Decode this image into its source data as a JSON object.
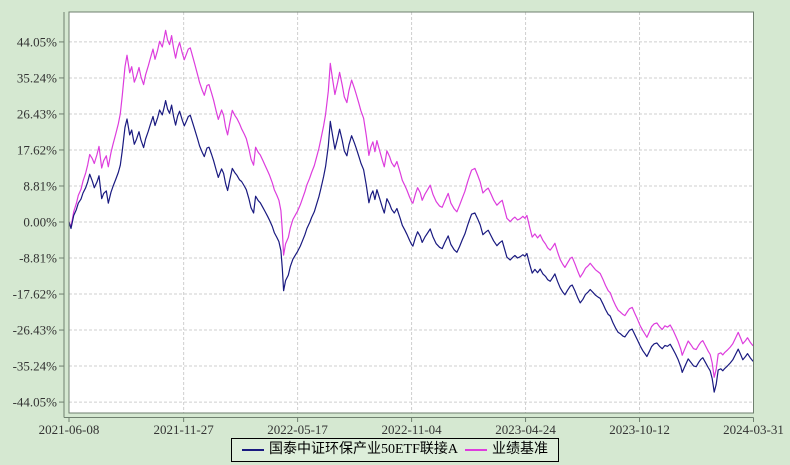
{
  "colors": {
    "page_background": "#d5e8d1",
    "plot_background": "#ffffff",
    "grid": "#cfcfcf",
    "axis": "#6f7f6f",
    "tick_text": "#333333",
    "fund_line": "#1a1a80",
    "benchmark_line": "#dd3ddd"
  },
  "legend": {
    "items": [
      {
        "label": "国泰中证环保产业50ETF联接A",
        "color": "#1a1a80"
      },
      {
        "label": "业绩基准",
        "color": "#dd3ddd"
      }
    ]
  },
  "chart_data": {
    "type": "line",
    "title": "",
    "grid": true,
    "legend_position": "bottom",
    "x_axis": {
      "tick_labels": [
        "2021-06-08",
        "2021-11-27",
        "2022-05-17",
        "2022-11-04",
        "2023-04-24",
        "2023-10-12",
        "2024-03-31"
      ],
      "tick_days": [
        0,
        172,
        343,
        514,
        685,
        856,
        1027
      ],
      "range_days": [
        0,
        1027
      ],
      "unit": "days since 2021-06-08"
    },
    "y_axis": {
      "tick_labels": [
        "44.05%",
        "35.24%",
        "26.43%",
        "17.62%",
        "8.81%",
        "0.00%",
        "-8.81%",
        "-17.62%",
        "-26.43%",
        "-35.24%",
        "-44.05%"
      ],
      "tick_values": [
        44.05,
        35.24,
        26.43,
        17.62,
        8.81,
        0,
        -8.81,
        -17.62,
        -26.43,
        -35.24,
        -44.05
      ],
      "range": [
        -46.8,
        51.3
      ],
      "unit": "%"
    },
    "days": [
      0,
      3,
      7,
      11,
      14,
      18,
      21,
      25,
      28,
      31,
      35,
      38,
      42,
      45,
      49,
      52,
      56,
      59,
      63,
      66,
      70,
      74,
      77,
      80,
      84,
      87,
      91,
      94,
      98,
      101,
      105,
      108,
      112,
      115,
      119,
      122,
      126,
      129,
      133,
      136,
      140,
      143,
      145,
      148,
      151,
      154,
      157,
      160,
      163,
      166,
      170,
      173,
      176,
      179,
      182,
      186,
      189,
      193,
      196,
      200,
      203,
      207,
      210,
      214,
      217,
      221,
      224,
      229,
      232,
      235,
      238,
      241,
      245,
      249,
      252,
      256,
      259,
      263,
      266,
      270,
      273,
      277,
      280,
      284,
      287,
      291,
      294,
      298,
      301,
      305,
      308,
      312,
      315,
      318,
      320,
      322,
      325,
      329,
      332,
      336,
      340,
      343,
      347,
      350,
      354,
      357,
      361,
      364,
      368,
      371,
      375,
      378,
      382,
      385,
      389,
      392,
      395,
      399,
      403,
      406,
      410,
      413,
      417,
      420,
      424,
      428,
      431,
      435,
      438,
      442,
      446,
      450,
      453,
      456,
      459,
      462,
      466,
      470,
      473,
      477,
      481,
      484,
      488,
      492,
      497,
      500,
      504,
      507,
      511,
      514,
      516,
      520,
      523,
      527,
      530,
      534,
      538,
      542,
      546,
      551,
      556,
      560,
      564,
      569,
      573,
      578,
      582,
      586,
      590,
      594,
      598,
      601,
      604,
      609,
      613,
      617,
      621,
      625,
      629,
      633,
      637,
      642,
      646,
      650,
      654,
      657,
      662,
      666,
      669,
      673,
      677,
      681,
      684,
      687,
      691,
      695,
      699,
      703,
      707,
      711,
      715,
      718,
      722,
      726,
      729,
      733,
      737,
      741,
      744,
      748,
      752,
      755,
      759,
      763,
      767,
      771,
      775,
      779,
      782,
      786,
      790,
      794,
      797,
      801,
      805,
      809,
      812,
      816,
      820,
      824,
      827,
      831,
      834,
      838,
      841,
      845,
      849,
      853,
      857,
      861,
      864,
      867,
      871,
      874,
      878,
      882,
      886,
      890,
      894,
      898,
      902,
      906,
      910,
      914,
      918,
      920,
      924,
      929,
      933,
      937,
      941,
      945,
      948,
      951,
      955,
      959,
      962,
      965,
      968,
      971,
      974,
      978,
      981,
      984,
      988,
      992,
      996,
      1000,
      1004,
      1008,
      1011,
      1015,
      1018,
      1022,
      1026
    ],
    "series": [
      {
        "name": "国泰中证环保产业50ETF联接A",
        "color": "#1a1a80",
        "values": [
          0,
          -1.6,
          1.6,
          3.0,
          4.6,
          5.6,
          7.1,
          8.4,
          9.8,
          11.7,
          10.0,
          8.4,
          9.8,
          11.3,
          5.7,
          7.0,
          7.6,
          4.6,
          7.3,
          8.7,
          10.4,
          12.1,
          13.9,
          17.5,
          23.2,
          25.2,
          21.3,
          22.5,
          19.0,
          20.1,
          22.1,
          20.0,
          18.2,
          20.3,
          22.2,
          23.8,
          25.8,
          23.6,
          25.5,
          27.4,
          26.2,
          28.2,
          29.7,
          27.6,
          26.6,
          28.6,
          25.8,
          23.7,
          25.9,
          27.1,
          24.9,
          23.5,
          24.6,
          25.8,
          26.1,
          24.0,
          22.4,
          20.3,
          18.6,
          17.0,
          16.0,
          18.1,
          18.3,
          16.5,
          15.0,
          12.6,
          10.9,
          13.0,
          11.9,
          9.4,
          7.7,
          10.1,
          13.1,
          12.0,
          11.4,
          10.3,
          9.9,
          8.8,
          7.9,
          5.6,
          3.5,
          2.2,
          6.3,
          5.2,
          4.7,
          3.5,
          2.6,
          1.4,
          0.4,
          -1.1,
          -2.6,
          -3.8,
          -4.8,
          -7.0,
          -11.3,
          -16.8,
          -14.3,
          -13.0,
          -10.9,
          -9.1,
          -8.0,
          -7.2,
          -5.9,
          -4.7,
          -3.1,
          -1.6,
          -0.2,
          1.1,
          2.5,
          4.1,
          6.2,
          8.2,
          11.1,
          13.6,
          18.6,
          24.6,
          21.6,
          17.8,
          20.5,
          22.7,
          19.9,
          17.4,
          16.2,
          18.8,
          21.1,
          19.4,
          18.0,
          16.0,
          14.4,
          12.8,
          9.0,
          4.7,
          6.6,
          7.6,
          5.5,
          7.9,
          5.8,
          3.6,
          2.2,
          5.7,
          4.4,
          3.1,
          2.2,
          3.3,
          0.8,
          -0.8,
          -2.0,
          -3.0,
          -4.5,
          -5.5,
          -5.9,
          -3.7,
          -2.4,
          -3.5,
          -5.0,
          -3.7,
          -2.7,
          -1.7,
          -3.6,
          -5.3,
          -6.2,
          -6.5,
          -5.0,
          -3.4,
          -5.5,
          -6.8,
          -7.4,
          -6.0,
          -4.4,
          -2.9,
          -0.8,
          0.6,
          1.9,
          2.2,
          0.8,
          -0.7,
          -3.1,
          -2.5,
          -2.0,
          -3.3,
          -4.6,
          -5.8,
          -5.1,
          -4.6,
          -6.9,
          -8.6,
          -9.3,
          -8.6,
          -8.2,
          -8.8,
          -8.5,
          -8.0,
          -8.4,
          -7.7,
          -10.3,
          -12.5,
          -11.6,
          -12.4,
          -11.5,
          -12.7,
          -13.3,
          -14.1,
          -14.5,
          -13.5,
          -12.7,
          -14.5,
          -16.1,
          -17.2,
          -17.8,
          -16.7,
          -15.7,
          -15.4,
          -16.8,
          -18.4,
          -19.8,
          -18.9,
          -17.7,
          -17.1,
          -16.5,
          -17.2,
          -17.9,
          -18.4,
          -18.7,
          -20.0,
          -21.4,
          -22.6,
          -23.0,
          -24.6,
          -25.9,
          -27.0,
          -27.3,
          -27.9,
          -28.1,
          -27.2,
          -26.5,
          -26.2,
          -27.6,
          -28.9,
          -30.3,
          -31.5,
          -32.2,
          -32.9,
          -31.6,
          -30.5,
          -29.8,
          -29.6,
          -30.4,
          -31.0,
          -30.2,
          -30.4,
          -29.9,
          -31.1,
          -32.3,
          -33.7,
          -35.5,
          -36.8,
          -35.3,
          -33.5,
          -34.3,
          -35.2,
          -35.4,
          -34.3,
          -33.6,
          -33.2,
          -34.4,
          -35.6,
          -36.4,
          -38.3,
          -41.6,
          -39.7,
          -36.2,
          -35.9,
          -36.4,
          -35.8,
          -35.2,
          -34.5,
          -33.7,
          -32.4,
          -31.1,
          -32.5,
          -33.7,
          -32.9,
          -32.2,
          -33.2,
          -34.0
        ]
      },
      {
        "name": "业绩基准",
        "color": "#dd3ddd",
        "values": [
          0,
          -1.2,
          2.5,
          4.5,
          6.5,
          8,
          10,
          12,
          14,
          16.5,
          15.5,
          14.3,
          16.5,
          18.5,
          13.2,
          15,
          16.2,
          13.5,
          17,
          19,
          21.5,
          24,
          26.5,
          31,
          38,
          40.8,
          36.5,
          38,
          34.2,
          35.5,
          37.8,
          35.5,
          33.6,
          36,
          38.2,
          40,
          42.3,
          39.8,
          42,
          44.2,
          42.8,
          45.2,
          46.9,
          44.5,
          43.4,
          45.6,
          42.5,
          40.1,
          42.5,
          43.9,
          41.3,
          39.7,
          41,
          42.3,
          42.6,
          40.2,
          38.4,
          36,
          34.1,
          32.2,
          31,
          33.4,
          33.6,
          31.5,
          29.8,
          27,
          25.1,
          27.4,
          26.1,
          23.2,
          21.3,
          24,
          27.3,
          26,
          25.3,
          24,
          22.8,
          21.5,
          20.4,
          17.8,
          15.4,
          13.9,
          18.3,
          17,
          16.4,
          15,
          13.9,
          12.5,
          11.4,
          9.6,
          7.9,
          6.5,
          5.3,
          2.8,
          -2,
          -8.1,
          -5.3,
          -3.8,
          -1.5,
          0.6,
          1.8,
          2.7,
          4.2,
          5.6,
          7.4,
          9.1,
          10.7,
          12.1,
          13.8,
          15.6,
          18,
          20.3,
          23.5,
          26.4,
          32,
          38.8,
          35.4,
          31.2,
          34.1,
          36.6,
          33.4,
          30.6,
          29.2,
          32.1,
          34.7,
          32.8,
          31.2,
          29,
          27.2,
          25.4,
          21.1,
          16.3,
          18.4,
          19.6,
          17.2,
          19.9,
          17.5,
          15.1,
          13.5,
          17.4,
          16,
          14.5,
          13.5,
          14.8,
          12,
          10.2,
          8.9,
          7.8,
          6.1,
          5,
          4.6,
          7,
          8.4,
          7.2,
          5.3,
          6.8,
          7.9,
          9,
          6.8,
          5,
          3.9,
          3.6,
          5.2,
          7,
          4.6,
          3.2,
          2.5,
          4.1,
          5.8,
          7.5,
          9.8,
          11.3,
          12.7,
          13.1,
          11.5,
          9.8,
          7.1,
          7.8,
          8.3,
          6.9,
          5.4,
          4.1,
          4.8,
          5.3,
          2.8,
          0.9,
          0.1,
          0.8,
          1.2,
          0.5,
          0.8,
          1.4,
          0.9,
          1.6,
          -1.2,
          -3.7,
          -2.9,
          -3.9,
          -3.1,
          -4.5,
          -5.4,
          -6.3,
          -6.9,
          -6,
          -5.2,
          -7.3,
          -9.2,
          -10.4,
          -11.1,
          -10,
          -8.9,
          -8.6,
          -10.2,
          -11.9,
          -13.5,
          -12.5,
          -11.3,
          -10.7,
          -10.1,
          -10.9,
          -11.7,
          -12.2,
          -12.6,
          -14,
          -15.5,
          -16.8,
          -17.3,
          -19,
          -20.4,
          -21.6,
          -22,
          -22.6,
          -22.9,
          -21.9,
          -21.2,
          -20.9,
          -22.4,
          -23.8,
          -25.4,
          -26.6,
          -27.4,
          -28.2,
          -26.8,
          -25.6,
          -24.9,
          -24.7,
          -25.6,
          -26.3,
          -25.4,
          -25.7,
          -25.2,
          -26.4,
          -27.8,
          -29.3,
          -31.2,
          -32.6,
          -31,
          -29.1,
          -30,
          -31,
          -31.2,
          -30.1,
          -29.4,
          -29,
          -30.3,
          -31.6,
          -32.4,
          -34.5,
          -38,
          -36,
          -32.3,
          -32,
          -32.5,
          -31.9,
          -31.3,
          -30.6,
          -29.8,
          -28.4,
          -27,
          -28.5,
          -29.8,
          -29,
          -28.3,
          -29.4,
          -30.2
        ]
      }
    ]
  }
}
